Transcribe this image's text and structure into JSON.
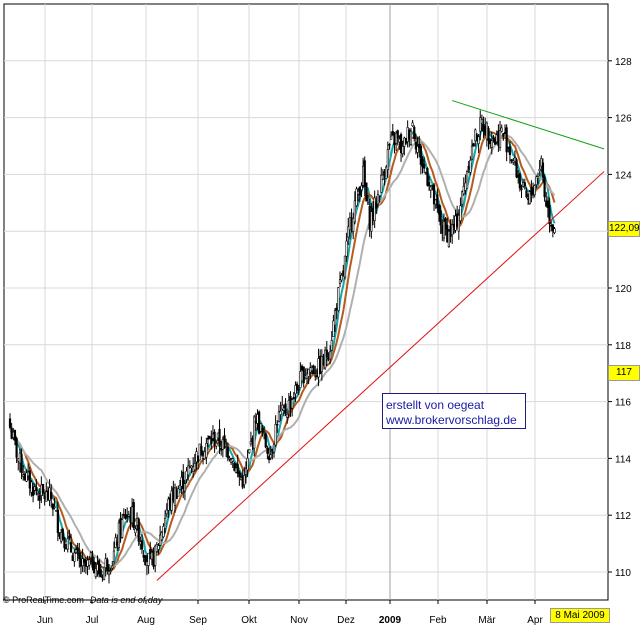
{
  "chart_data": {
    "type": "candlestick",
    "x_months": [
      "Jun",
      "Jul",
      "Aug",
      "Sep",
      "Okt",
      "Nov",
      "Dez",
      "2009",
      "Feb",
      "Mär",
      "Apr"
    ],
    "y_ticks": [
      110,
      112,
      114,
      116,
      118,
      120,
      122,
      124,
      126,
      128
    ],
    "ylim": [
      109.0,
      129.7
    ],
    "last_price": "122,09",
    "marker_price": "117",
    "end_date": "8 Mai 2009",
    "annotation": [
      "erstellt von oegeat",
      "www.brokervorschlag.de"
    ],
    "watermark": "© ProRealTime.com",
    "watermark_note": "Data is end of day",
    "close_path": [
      [
        0,
        115.1
      ],
      [
        5,
        114.0
      ],
      [
        10,
        113.3
      ],
      [
        15,
        112.9
      ],
      [
        20,
        112.7
      ],
      [
        25,
        112.6
      ],
      [
        30,
        111.5
      ],
      [
        35,
        111.0
      ],
      [
        40,
        110.5
      ],
      [
        45,
        110.1
      ],
      [
        50,
        110.4
      ],
      [
        55,
        109.9
      ],
      [
        58,
        110.3
      ],
      [
        62,
        110.4
      ],
      [
        66,
        111.4
      ],
      [
        70,
        112.0
      ],
      [
        74,
        112.0
      ],
      [
        78,
        111.4
      ],
      [
        82,
        110.6
      ],
      [
        85,
        110.3
      ],
      [
        88,
        110.6
      ],
      [
        92,
        111.5
      ],
      [
        96,
        112.4
      ],
      [
        100,
        112.8
      ],
      [
        106,
        113.3
      ],
      [
        112,
        114.0
      ],
      [
        118,
        114.5
      ],
      [
        124,
        114.7
      ],
      [
        130,
        114.4
      ],
      [
        134,
        114.2
      ],
      [
        138,
        113.4
      ],
      [
        142,
        113.2
      ],
      [
        146,
        114.5
      ],
      [
        149,
        115.5
      ],
      [
        152,
        115.0
      ],
      [
        155,
        114.5
      ],
      [
        158,
        114.2
      ],
      [
        162,
        115.4
      ],
      [
        166,
        115.6
      ],
      [
        170,
        116.0
      ],
      [
        174,
        116.5
      ],
      [
        178,
        117.0
      ],
      [
        182,
        117.2
      ],
      [
        186,
        117.1
      ],
      [
        190,
        117.4
      ],
      [
        194,
        118.0
      ],
      [
        198,
        119.5
      ],
      [
        202,
        120.5
      ],
      [
        206,
        122.3
      ],
      [
        210,
        123.2
      ],
      [
        214,
        124.0
      ],
      [
        216,
        123.0
      ],
      [
        218,
        122.4
      ],
      [
        222,
        123.0
      ],
      [
        226,
        124.0
      ],
      [
        230,
        125.0
      ],
      [
        234,
        125.3
      ],
      [
        238,
        124.8
      ],
      [
        240,
        125.3
      ],
      [
        244,
        125.8
      ],
      [
        246,
        125.2
      ],
      [
        250,
        124.3
      ],
      [
        254,
        123.8
      ],
      [
        258,
        122.8
      ],
      [
        262,
        122.1
      ],
      [
        266,
        121.9
      ],
      [
        270,
        122.2
      ],
      [
        274,
        123.2
      ],
      [
        278,
        124.5
      ],
      [
        282,
        125.3
      ],
      [
        286,
        125.8
      ],
      [
        290,
        125.5
      ],
      [
        294,
        125.2
      ],
      [
        298,
        125.5
      ],
      [
        302,
        125.0
      ],
      [
        306,
        124.3
      ],
      [
        310,
        123.5
      ],
      [
        314,
        123.0
      ],
      [
        318,
        123.7
      ],
      [
        322,
        124.5
      ],
      [
        324,
        123.3
      ],
      [
        327,
        122.5
      ],
      [
        330,
        122.09
      ]
    ],
    "candle_days": 331,
    "moving_averages": [
      {
        "name": "fast",
        "color": "#1aa6a6",
        "period": 5
      },
      {
        "name": "medium",
        "color": "#b85a1e",
        "period": 10
      },
      {
        "name": "slow",
        "color": "#b0b0b0",
        "period": 20
      }
    ],
    "trendlines": [
      {
        "name": "support",
        "color": "#e01010",
        "from": [
          89,
          109.7
        ],
        "to": [
          360,
          124.1
        ]
      },
      {
        "name": "resistance",
        "color": "#10a010",
        "from": [
          268,
          126.6
        ],
        "to": [
          360,
          124.9
        ]
      }
    ],
    "colors": {
      "background": "#ffffff",
      "grid": "#d8d8d8",
      "candle": "#000000",
      "separator": "#a0a0a0",
      "last_price_badge": "#ffff00",
      "marker_price_badge": "#ffff00"
    }
  }
}
